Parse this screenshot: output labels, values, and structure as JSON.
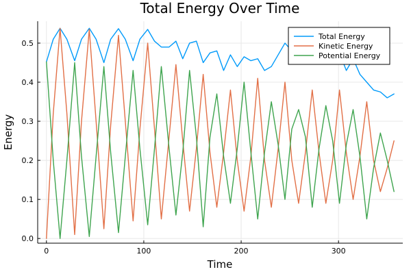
{
  "chart_data": {
    "type": "line",
    "title": "Total Energy Over Time",
    "xlabel": "Time",
    "ylabel": "Energy",
    "xlim": [
      -9,
      366
    ],
    "ylim": [
      -0.012,
      0.556
    ],
    "xticks": [
      0,
      100,
      200,
      300
    ],
    "yticks": [
      0.0,
      0.1,
      0.2,
      0.3,
      0.4,
      0.5
    ],
    "xtick_labels": [
      "0",
      "100",
      "200",
      "300"
    ],
    "ytick_labels": [
      "0.0",
      "0.1",
      "0.2",
      "0.3",
      "0.4",
      "0.5"
    ],
    "grid": true,
    "legend_position": "top-right",
    "series": [
      {
        "name": "Total Energy",
        "color": "#009AFA",
        "x": [
          0,
          7,
          14,
          21,
          29,
          36,
          44,
          51,
          59,
          66,
          74,
          81,
          89,
          96,
          104,
          111,
          118,
          126,
          133,
          140,
          147,
          154,
          161,
          168,
          175,
          182,
          189,
          196,
          203,
          210,
          217,
          224,
          231,
          238,
          245,
          252,
          259,
          266,
          273,
          280,
          287,
          294,
          301,
          308,
          315,
          322,
          329,
          336,
          343,
          350,
          357
        ],
        "y": [
          0.452,
          0.51,
          0.538,
          0.51,
          0.455,
          0.51,
          0.538,
          0.51,
          0.45,
          0.51,
          0.537,
          0.51,
          0.455,
          0.51,
          0.535,
          0.505,
          0.49,
          0.49,
          0.505,
          0.46,
          0.5,
          0.505,
          0.45,
          0.475,
          0.48,
          0.43,
          0.47,
          0.44,
          0.465,
          0.455,
          0.46,
          0.43,
          0.44,
          0.47,
          0.5,
          0.48,
          0.455,
          0.5,
          0.47,
          0.45,
          0.5,
          0.46,
          0.475,
          0.43,
          0.46,
          0.42,
          0.4,
          0.38,
          0.375,
          0.36,
          0.37
        ]
      },
      {
        "name": "Kinetic Energy",
        "color": "#E26F46",
        "x": [
          0,
          7,
          14,
          21,
          29,
          36,
          44,
          51,
          59,
          66,
          74,
          81,
          89,
          96,
          104,
          111,
          118,
          126,
          133,
          140,
          147,
          154,
          161,
          168,
          175,
          182,
          189,
          196,
          203,
          210,
          217,
          224,
          231,
          238,
          245,
          252,
          259,
          266,
          273,
          280,
          287,
          294,
          301,
          308,
          315,
          322,
          329,
          336,
          343,
          350,
          357
        ],
        "y": [
          0.0,
          0.32,
          0.538,
          0.32,
          0.01,
          0.3,
          0.535,
          0.3,
          0.025,
          0.29,
          0.52,
          0.3,
          0.045,
          0.28,
          0.5,
          0.28,
          0.05,
          0.26,
          0.445,
          0.25,
          0.07,
          0.23,
          0.42,
          0.22,
          0.08,
          0.22,
          0.38,
          0.2,
          0.07,
          0.21,
          0.41,
          0.2,
          0.08,
          0.23,
          0.4,
          0.2,
          0.09,
          0.22,
          0.38,
          0.22,
          0.09,
          0.2,
          0.38,
          0.22,
          0.1,
          0.21,
          0.35,
          0.2,
          0.12,
          0.18,
          0.25
        ]
      },
      {
        "name": "Potential Energy",
        "color": "#3EA44E",
        "x": [
          0,
          7,
          14,
          21,
          29,
          36,
          44,
          51,
          59,
          66,
          74,
          81,
          89,
          96,
          104,
          111,
          118,
          126,
          133,
          140,
          147,
          154,
          161,
          168,
          175,
          182,
          189,
          196,
          203,
          210,
          217,
          224,
          231,
          238,
          245,
          252,
          259,
          266,
          273,
          280,
          287,
          294,
          301,
          308,
          315,
          322,
          329,
          336,
          343,
          350,
          357
        ],
        "y": [
          0.452,
          0.2,
          0.0,
          0.2,
          0.45,
          0.21,
          0.005,
          0.21,
          0.44,
          0.22,
          0.015,
          0.21,
          0.43,
          0.23,
          0.035,
          0.23,
          0.44,
          0.23,
          0.06,
          0.22,
          0.43,
          0.26,
          0.03,
          0.26,
          0.37,
          0.21,
          0.09,
          0.23,
          0.4,
          0.22,
          0.05,
          0.22,
          0.35,
          0.24,
          0.1,
          0.28,
          0.33,
          0.26,
          0.08,
          0.23,
          0.34,
          0.25,
          0.09,
          0.24,
          0.33,
          0.21,
          0.05,
          0.18,
          0.27,
          0.2,
          0.12
        ]
      }
    ]
  }
}
